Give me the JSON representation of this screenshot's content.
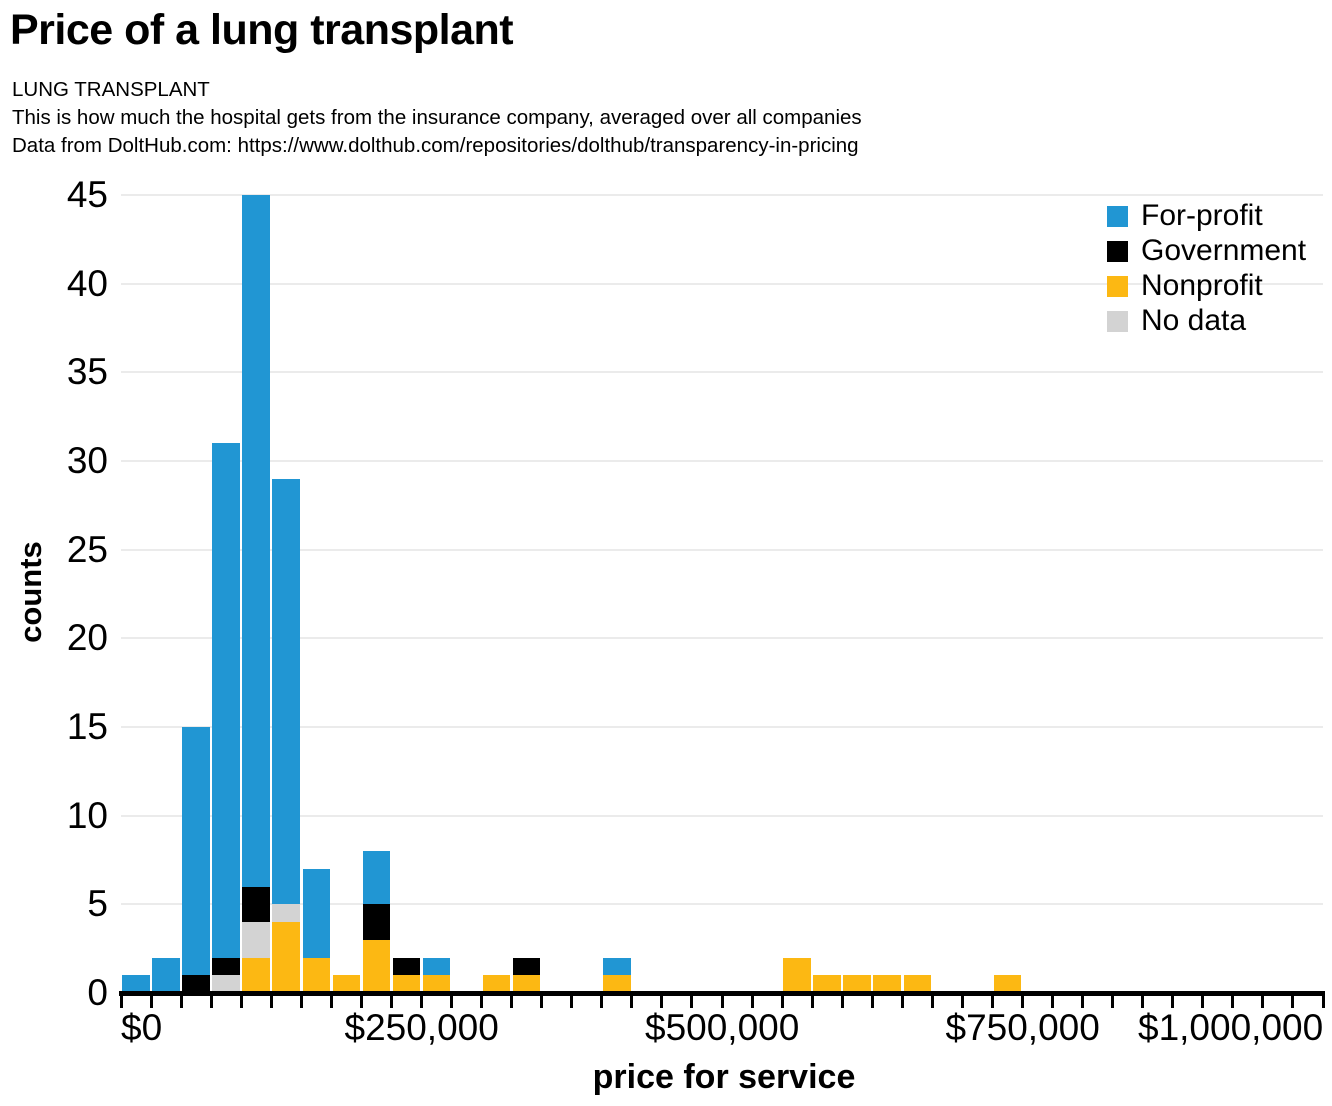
{
  "header": {
    "title": "Price of a lung transplant",
    "subtitle_lines": [
      "LUNG TRANSPLANT",
      "This is how much the hospital gets from the insurance company, averaged over all companies",
      "Data from DoltHub.com: https://www.dolthub.com/repositories/dolthub/transparency-in-pricing"
    ]
  },
  "chart_data": {
    "type": "bar",
    "stacked": true,
    "title": "Price of a lung transplant",
    "xlabel": "price for service",
    "ylabel": "counts",
    "xlim": [
      0,
      1000000
    ],
    "ylim": [
      0,
      45
    ],
    "grid": "horizontal",
    "legend_position": "top-right",
    "bin_width": 25000,
    "minor_xtick_step": 25000,
    "yticks": [
      0,
      5,
      10,
      15,
      20,
      25,
      30,
      35,
      40,
      45
    ],
    "xticks": [
      {
        "value": 0,
        "label": "$0"
      },
      {
        "value": 250000,
        "label": "$250,000"
      },
      {
        "value": 500000,
        "label": "$500,000"
      },
      {
        "value": 750000,
        "label": "$750,000"
      },
      {
        "value": 1000000,
        "label": "$1,000,000"
      }
    ],
    "legend": [
      "For-profit",
      "Government",
      "Nonprofit",
      "No data"
    ],
    "stack_order": [
      "Nonprofit",
      "No data",
      "Government",
      "For-profit"
    ],
    "series_colors": {
      "For-profit": "#2196d3",
      "Government": "#000000",
      "Nonprofit": "#fcb813",
      "No data": "#d3d3d3"
    },
    "colors": {
      "grid": "#ebebeb",
      "axis": "#000000",
      "background": "#ffffff"
    },
    "bins": [
      {
        "x0": 0,
        "For-profit": 1
      },
      {
        "x0": 25000,
        "For-profit": 2
      },
      {
        "x0": 50000,
        "Government": 1,
        "For-profit": 14
      },
      {
        "x0": 75000,
        "No data": 1,
        "Government": 1,
        "For-profit": 29
      },
      {
        "x0": 100000,
        "Nonprofit": 2,
        "No data": 2,
        "Government": 2,
        "For-profit": 39
      },
      {
        "x0": 125000,
        "Nonprofit": 4,
        "No data": 1,
        "For-profit": 24
      },
      {
        "x0": 150000,
        "Nonprofit": 2,
        "For-profit": 5
      },
      {
        "x0": 175000,
        "Nonprofit": 1
      },
      {
        "x0": 200000,
        "Nonprofit": 3,
        "Government": 2,
        "For-profit": 3
      },
      {
        "x0": 225000,
        "Nonprofit": 1,
        "Government": 1
      },
      {
        "x0": 250000,
        "Nonprofit": 1,
        "For-profit": 1
      },
      {
        "x0": 300000,
        "Nonprofit": 1
      },
      {
        "x0": 325000,
        "Nonprofit": 1,
        "Government": 1
      },
      {
        "x0": 400000,
        "Nonprofit": 1,
        "For-profit": 1
      },
      {
        "x0": 550000,
        "Nonprofit": 2
      },
      {
        "x0": 575000,
        "Nonprofit": 1
      },
      {
        "x0": 600000,
        "Nonprofit": 1
      },
      {
        "x0": 625000,
        "Nonprofit": 1
      },
      {
        "x0": 650000,
        "Nonprofit": 1
      },
      {
        "x0": 725000,
        "Nonprofit": 1
      }
    ]
  }
}
